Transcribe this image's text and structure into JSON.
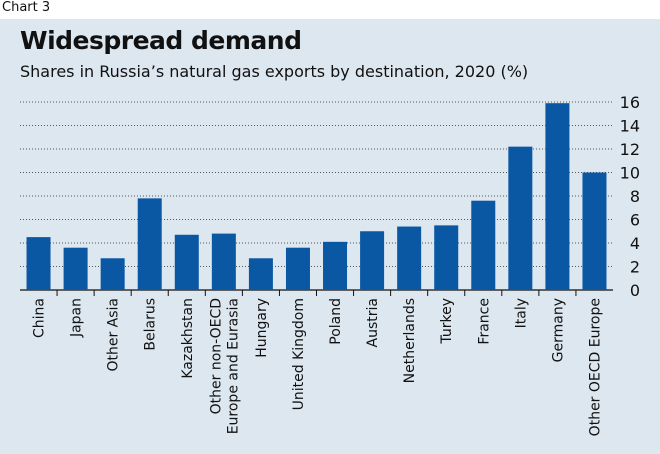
{
  "chart_label": "Chart 3",
  "chart_data": {
    "type": "bar",
    "title": "Widespread demand",
    "subtitle": "Shares in Russia’s natural gas exports by destination, 2020 (%)",
    "categories": [
      "China",
      "Japan",
      "Other Asia",
      "Belarus",
      "Kazakhstan",
      "Other non-OECD\nEurope and Eurasia",
      "Hungary",
      "United Kingdom",
      "Poland",
      "Austria",
      "Netherlands",
      "Turkey",
      "France",
      "Italy",
      "Germany",
      "Other OECD Europe"
    ],
    "values": [
      4.5,
      3.6,
      2.7,
      7.8,
      4.7,
      4.8,
      2.7,
      3.6,
      4.1,
      5.0,
      5.4,
      5.5,
      7.6,
      12.2,
      15.9,
      10.0
    ],
    "ylim": [
      0,
      16
    ],
    "yticks": [
      0,
      2,
      4,
      6,
      8,
      10,
      12,
      14,
      16
    ],
    "y_axis_side": "right",
    "grid": true,
    "colors": {
      "bar": "#0a57a4",
      "grid": "#555555",
      "background": "#dde7f0"
    }
  }
}
